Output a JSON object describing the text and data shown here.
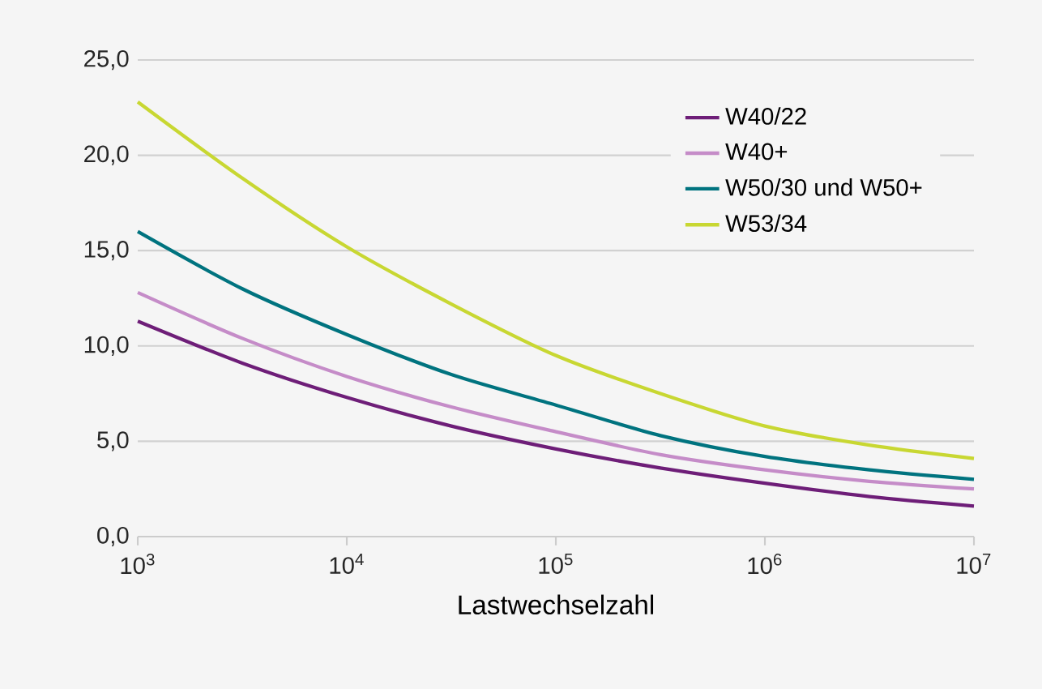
{
  "chart_data": {
    "type": "line",
    "xlabel": "Lastwechselzahl",
    "log": "x",
    "grid": "y",
    "legend": "top right",
    "marker": "none",
    "line_style": "solid",
    "x": [
      1000,
      3162,
      10000,
      31623,
      100000,
      316228,
      1000000,
      3162278,
      10000000
    ],
    "xlim": [
      1000,
      10000000
    ],
    "xticks": [
      {
        "value": 1000,
        "label": "10$^{3}$"
      },
      {
        "value": 10000,
        "label": "10$^{4}$"
      },
      {
        "value": 100000,
        "label": "10$^{5}$"
      },
      {
        "value": 1000000,
        "label": "10$^{6}$"
      },
      {
        "value": 10000000,
        "label": "10$^{7}$"
      }
    ],
    "ylim": [
      0,
      25
    ],
    "yticks": [
      {
        "value": 0,
        "label": "0,0"
      },
      {
        "value": 5,
        "label": "5,0"
      },
      {
        "value": 10,
        "label": "10,0"
      },
      {
        "value": 15,
        "label": "15,0"
      },
      {
        "value": 20,
        "label": "20,0"
      },
      {
        "value": 25,
        "label": "25,0"
      }
    ],
    "series": [
      {
        "name": "W40/22",
        "color": "#6e1e78",
        "values": [
          11.3,
          9.1,
          7.3,
          5.8,
          4.6,
          3.6,
          2.8,
          2.1,
          1.6
        ]
      },
      {
        "name": "W40+",
        "color": "#c58cc8",
        "values": [
          12.8,
          10.4,
          8.4,
          6.8,
          5.5,
          4.3,
          3.5,
          2.9,
          2.5
        ]
      },
      {
        "name": "W50/30  und W50+",
        "color": "#00737f",
        "values": [
          16.0,
          13.0,
          10.6,
          8.5,
          6.9,
          5.3,
          4.2,
          3.5,
          3.0
        ]
      },
      {
        "name": "W53/34",
        "color": "#c8d732",
        "values": [
          22.8,
          18.8,
          15.2,
          12.2,
          9.5,
          7.5,
          5.8,
          4.8,
          4.1
        ]
      }
    ]
  }
}
